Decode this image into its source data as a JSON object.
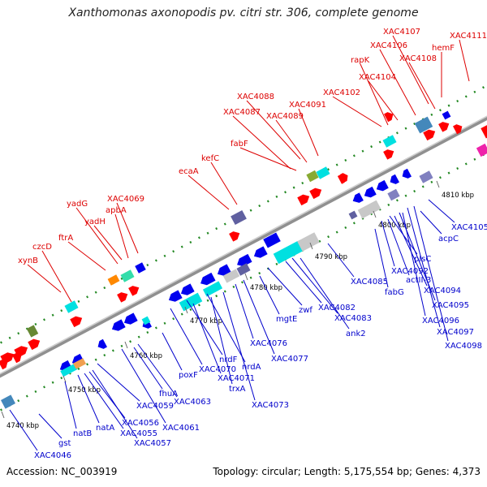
{
  "title": "Xanthomonas axonopodis pv. citri str. 306, complete genome",
  "accession_text": "Accession: NC_003919",
  "topology_text": "Topology: circular; Length: 5,175,554 bp; Genes: 4,373",
  "colors": {
    "label_top": "#dd0000",
    "label_bottom": "#0000cc",
    "axis": "#a0a0a0",
    "dots": "#22aa22",
    "forward_gene": "#ff0000",
    "reverse_gene": "#0000ee",
    "cyan_gene": "#00e0e0",
    "grey_gene": "#c8c8c8"
  },
  "kbp_ticks": [
    "4740 kbp",
    "4750 kbp",
    "4760 kbp",
    "4770 kbp",
    "4780 kbp",
    "4790 kbp",
    "4800 kbp",
    "4810 kbp"
  ],
  "top_labels": [
    "xynB",
    "czcD",
    "ftrA",
    "yadG",
    "yadH",
    "apbA",
    "XAC4069",
    "ecaA",
    "kefC",
    "fabF",
    "XAC4087",
    "XAC4088",
    "XAC4089",
    "XAC4091",
    "XAC4102",
    "rapK",
    "XAC4104",
    "XAC4106",
    "XAC4107",
    "XAC4108",
    "hemF",
    "XAC4111"
  ],
  "bottom_labels": [
    "XAC4046",
    "gst",
    "natB",
    "natA",
    "XAC4055",
    "XAC4056",
    "XAC4057",
    "XAC4059",
    "XAC4061",
    "fhuA",
    "XAC4063",
    "poxF",
    "XAC4070",
    "nrdF",
    "XAC4071",
    "nrdA",
    "trxA",
    "XAC4073",
    "XAC4076",
    "XAC4077",
    "mgtE",
    "zwf",
    "XAC4082",
    "XAC4083",
    "ank2",
    "XAC4085",
    "fabG",
    "XAC4092",
    "plsC",
    "actII-3",
    "XAC4094",
    "XAC4095",
    "XAC4096",
    "XAC4097",
    "XAC4098",
    "acpC",
    "XAC4105"
  ]
}
